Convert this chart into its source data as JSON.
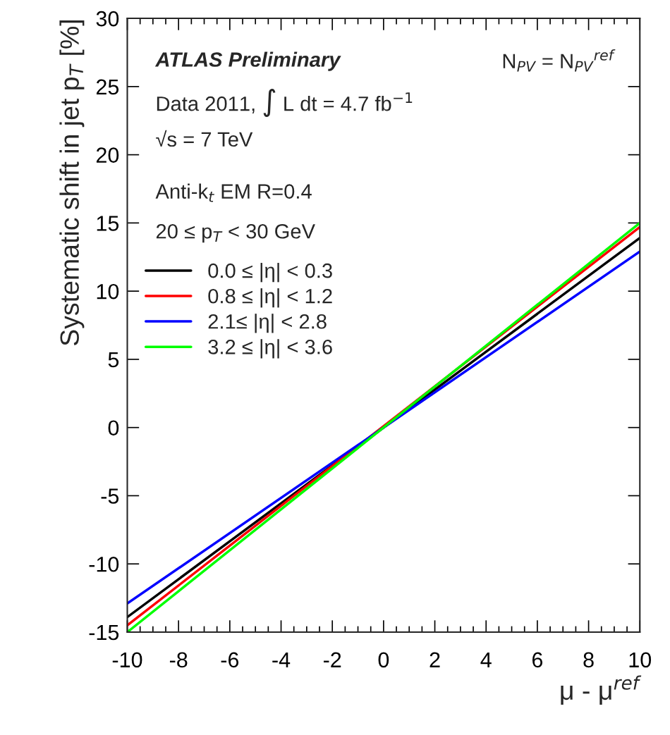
{
  "chart_data": {
    "type": "line",
    "xlabel": "μ - μ$^{ref}$",
    "ylabel": "Systematic shift in jet p$_{T}$ [%]",
    "annotations": [
      "ATLAS Preliminary",
      "Data 2011, ∫ L dt = 4.7 fb$^{−1}$",
      "√s = 7 TeV",
      "Anti-k$_{t}$ EM R=0.4",
      "20 ≤ p$_{T}$ < 30 GeV",
      "N$_{PV}$ = N$_{PV}$$^{ref}$"
    ],
    "x": [
      -10,
      10
    ],
    "series": [
      {
        "name": "0.0 ≤ |η| < 0.3",
        "color": "#000000",
        "values": [
          -13.9,
          13.9
        ]
      },
      {
        "name": "0.8 ≤ |η| < 1.2",
        "color": "#ff0000",
        "values": [
          -14.5,
          14.7
        ]
      },
      {
        "name": "2.1≤ |η| < 2.8",
        "color": "#0000ff",
        "values": [
          -12.9,
          12.9
        ]
      },
      {
        "name": "3.2 ≤ |η| < 3.6",
        "color": "#00ff00",
        "values": [
          -15.0,
          15.0
        ]
      }
    ],
    "xlim": [
      -10,
      10
    ],
    "ylim": [
      -15,
      30
    ],
    "xticks": [
      -10,
      -8,
      -6,
      -4,
      -2,
      0,
      2,
      4,
      6,
      8,
      10
    ],
    "yticks": [
      -15,
      -10,
      -5,
      0,
      5,
      10,
      15,
      20,
      25,
      30
    ],
    "legend": "left",
    "grid": false,
    "marker": "none",
    "line_style": "solid"
  }
}
